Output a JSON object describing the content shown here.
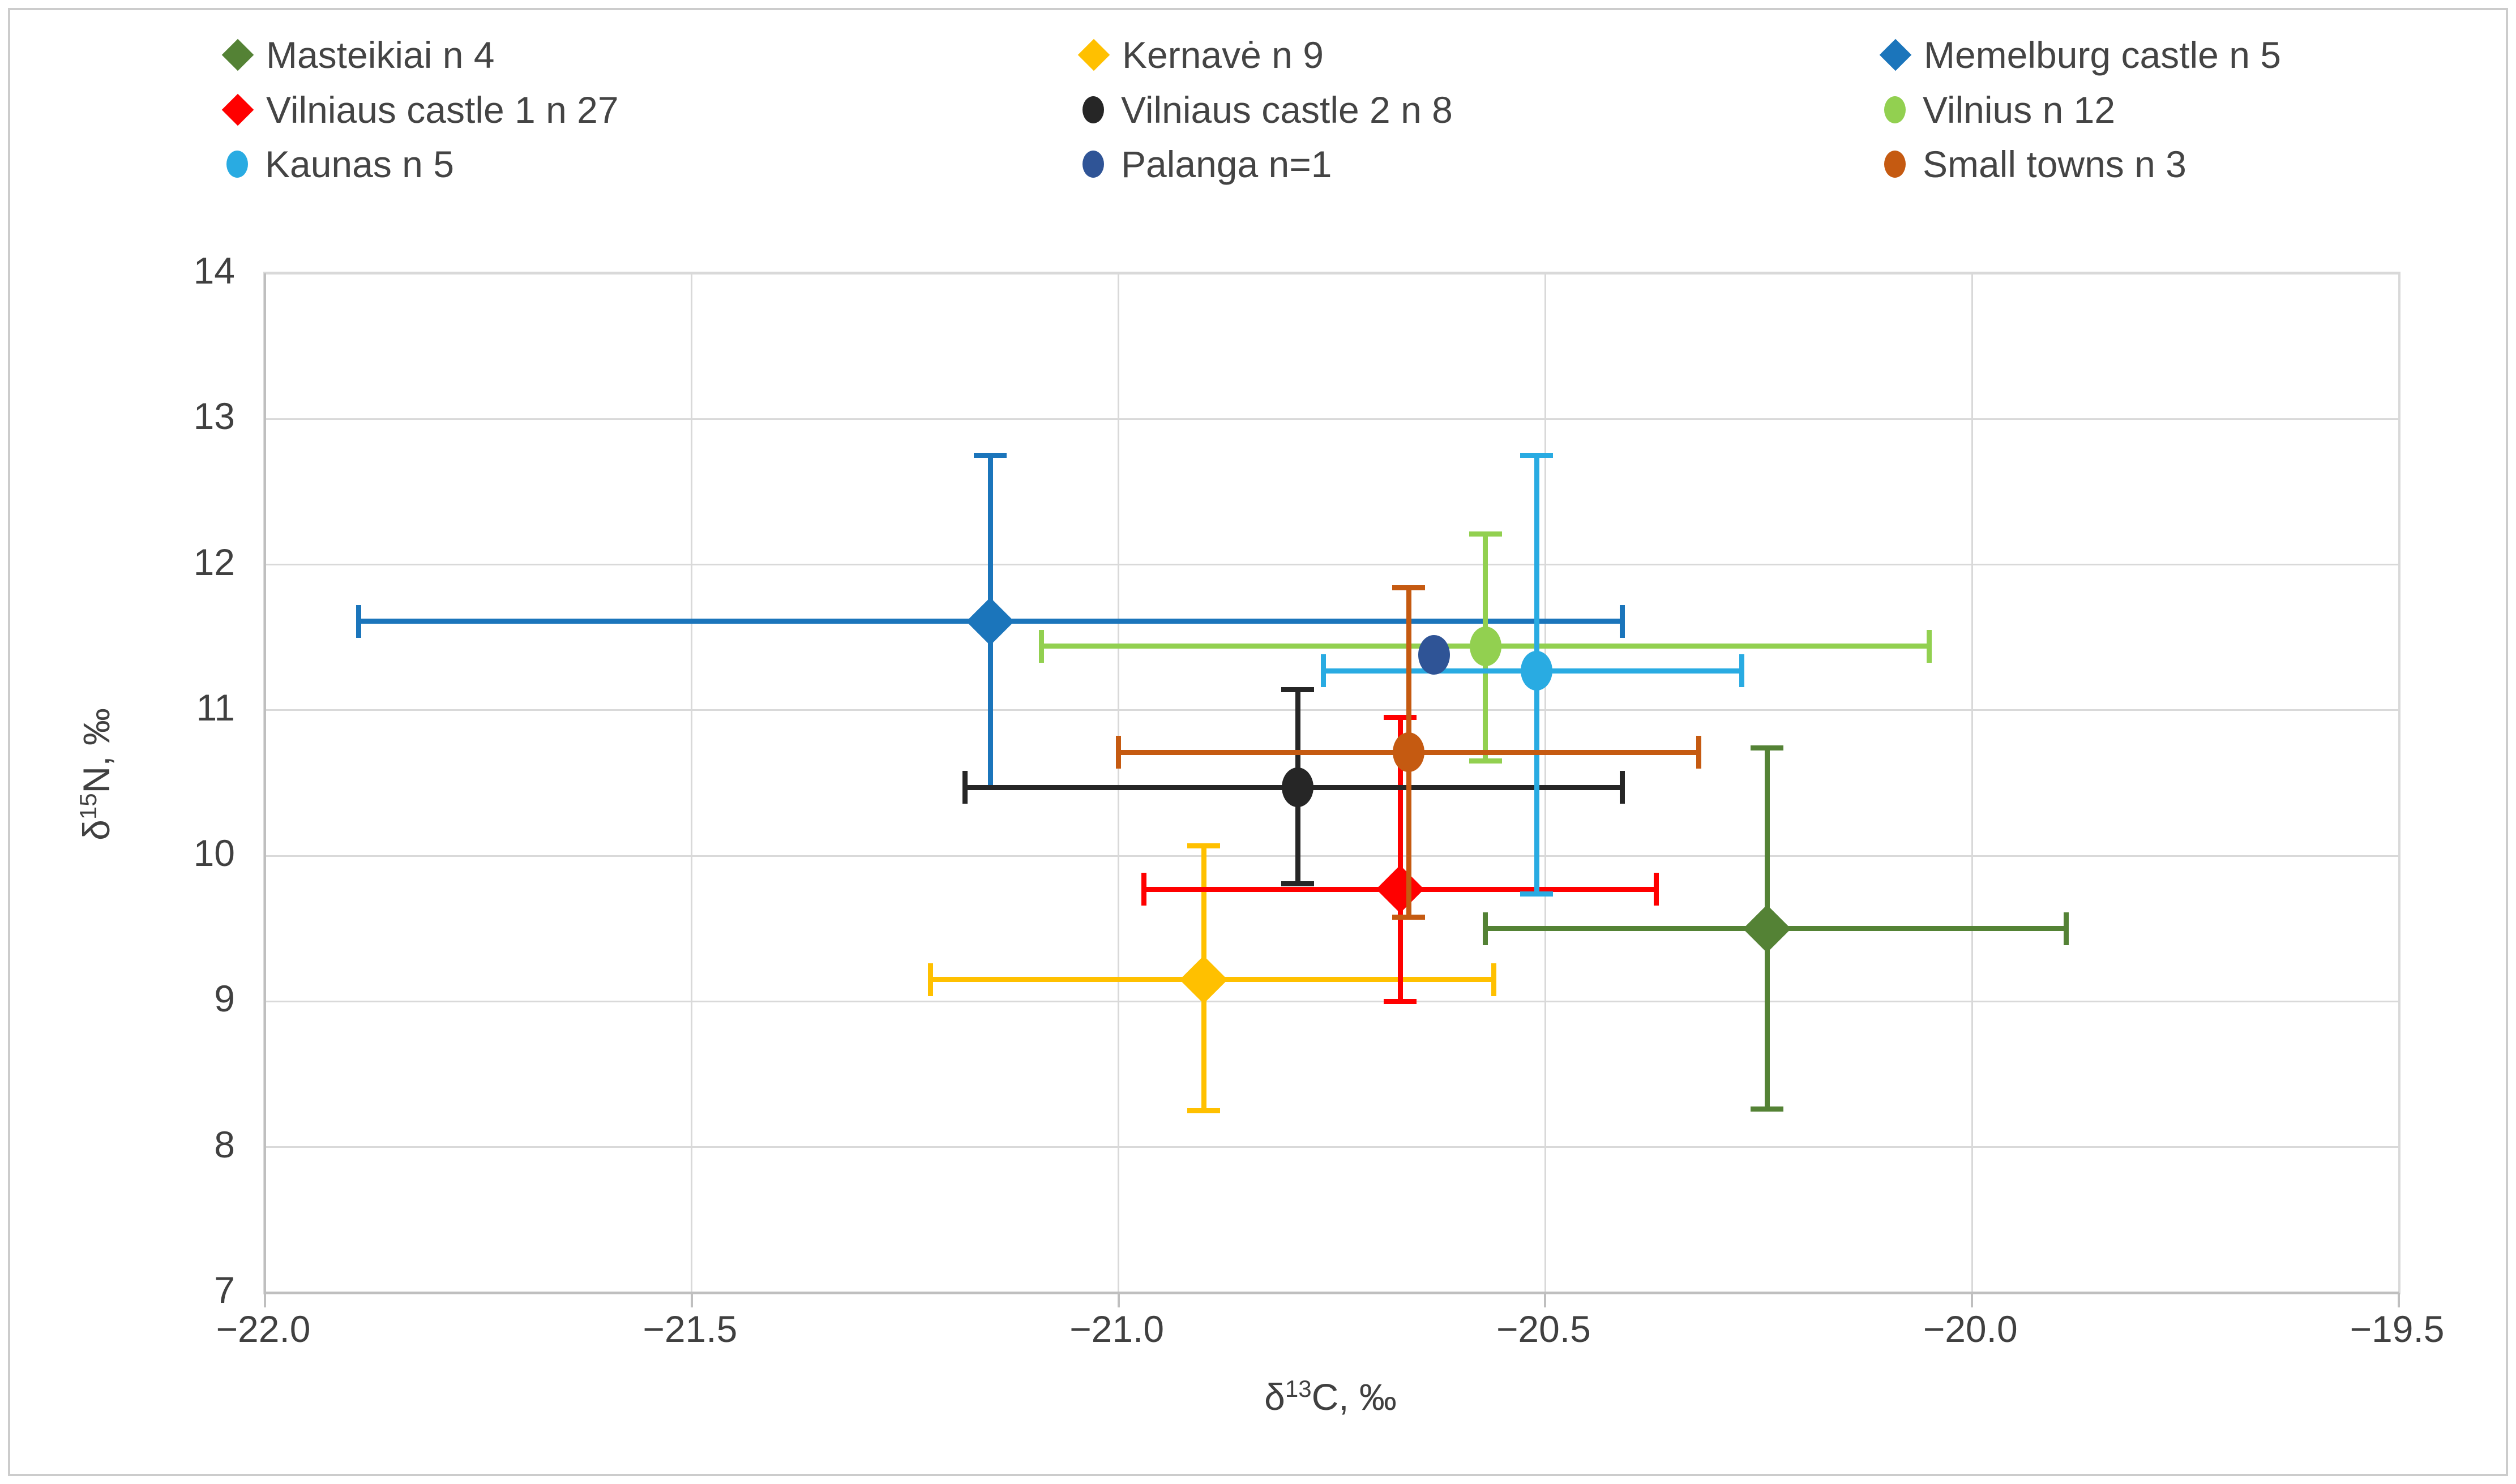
{
  "figure": {
    "xlabel": {
      "prefix": "δ",
      "sup": "13",
      "suffix": "C, ‰"
    },
    "ylabel": {
      "prefix": "δ",
      "sup": "15",
      "suffix": "N, ‰"
    }
  },
  "chart_data": {
    "type": "scatter",
    "title": "",
    "xlabel": "δ13C, ‰",
    "ylabel": "δ15N, ‰",
    "xlim": [
      -22.0,
      -19.5
    ],
    "ylim": [
      7,
      14
    ],
    "x_ticks": [
      -22.0,
      -21.5,
      -21.0,
      -20.5,
      -20.0,
      -19.5
    ],
    "x_tick_labels": [
      "−22.0",
      "−21.5",
      "−21.0",
      "−20.5",
      "−20.0",
      "−19.5"
    ],
    "y_ticks": [
      7,
      8,
      9,
      10,
      11,
      12,
      13,
      14
    ],
    "y_tick_labels": [
      "7",
      "8",
      "9",
      "10",
      "11",
      "12",
      "13",
      "14"
    ],
    "grid": true,
    "legend_position": "top",
    "series": [
      {
        "name": "Masteikiai n 4",
        "marker": "diamond",
        "color": "#548235",
        "x": -20.24,
        "y": 9.5,
        "x_err": [
          -20.57,
          -19.89
        ],
        "y_err": [
          8.26,
          10.74
        ]
      },
      {
        "name": "Kernavė n 9",
        "marker": "diamond",
        "color": "#FFC000",
        "x": -20.9,
        "y": 9.15,
        "x_err": [
          -21.22,
          -20.56
        ],
        "y_err": [
          8.25,
          10.07
        ]
      },
      {
        "name": "Memelburg castle n 5",
        "marker": "diamond",
        "color": "#1B75BB",
        "x": -21.15,
        "y": 11.61,
        "x_err": [
          -21.89,
          -20.41
        ],
        "y_err": [
          10.47,
          12.75
        ]
      },
      {
        "name": "Vilniaus castle 1 n 27",
        "marker": "diamond",
        "color": "#FF0000",
        "x": -20.67,
        "y": 9.77,
        "x_err": [
          -20.97,
          -20.37
        ],
        "y_err": [
          9.0,
          10.95
        ]
      },
      {
        "name": "Vilniaus castle 2 n 8",
        "marker": "circle",
        "color": "#262626",
        "x": -20.79,
        "y": 10.47,
        "x_err": [
          -21.18,
          -20.41
        ],
        "y_err": [
          9.81,
          11.14
        ]
      },
      {
        "name": "Vilnius n 12",
        "marker": "circle",
        "color": "#92D050",
        "x": -20.57,
        "y": 11.44,
        "x_err": [
          -21.09,
          -20.05
        ],
        "y_err": [
          10.65,
          12.21
        ]
      },
      {
        "name": "Kaunas n 5",
        "marker": "circle",
        "color": "#29ABE2",
        "x": -20.51,
        "y": 11.27,
        "x_err": [
          -20.76,
          -20.27
        ],
        "y_err": [
          9.74,
          12.75
        ]
      },
      {
        "name": "Palanga n=1",
        "marker": "circle",
        "color": "#2F5496",
        "x": -20.63,
        "y": 11.38,
        "x_err": null,
        "y_err": null
      },
      {
        "name": "Small towns n 3",
        "marker": "circle",
        "color": "#C55A11",
        "x": -20.66,
        "y": 10.71,
        "x_err": [
          -21.0,
          -20.32
        ],
        "y_err": [
          9.58,
          11.84
        ]
      }
    ]
  }
}
